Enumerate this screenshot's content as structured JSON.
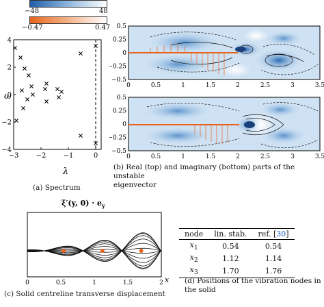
{
  "colorbars": {
    "blue": {
      "min_label": "−48",
      "max_label": "48",
      "low_color": "#1f5fa8",
      "high_color": "#ffffff"
    },
    "orange": {
      "min_label": "−0.47",
      "max_label": "0.47",
      "low_color": "#e8641c",
      "high_color": "#ffffff"
    }
  },
  "spectrum": {
    "caption": "(a) Spectrum",
    "xlabel": "λ",
    "ylabel": "ω",
    "xticks": [
      "−3",
      "−2",
      "−1",
      "0"
    ],
    "yticks": [
      "−4",
      "−2",
      "0",
      "2",
      "4"
    ]
  },
  "eigenvector": {
    "caption_line1": "(b) Real (top) and imaginary (bottom) parts of the unstable",
    "caption_line2": "eigenvector",
    "xticks": [
      "0",
      "0.5",
      "1",
      "1.5",
      "2",
      "2.5",
      "3",
      "3.5"
    ],
    "yticks": [
      "0.5",
      "0.25",
      "0",
      "−0.25",
      "−0.5"
    ]
  },
  "displacement": {
    "title": "ξ′(y, 0) · e_y",
    "caption_line1": "(c) Solid centreline transverse displacement",
    "caption_line2": "",
    "xlabel": "x",
    "xticks": [
      "0",
      "0.5",
      "1",
      "1.5",
      "2"
    ],
    "marker_color": "#e8641c"
  },
  "nodes_table": {
    "headers": [
      "node",
      "lin. stab.",
      "ref. [30]"
    ],
    "rows": [
      {
        "node": "x1",
        "lin": "0.54",
        "ref": "0.54"
      },
      {
        "node": "x2",
        "lin": "1.12",
        "ref": "1.14"
      },
      {
        "node": "x3",
        "lin": "1.70",
        "ref": "1.76"
      }
    ],
    "caption_line1": "(d) Positions of the vibration nodes in",
    "caption_line2": "the solid",
    "ref_color": "#1a56c8"
  },
  "chart_data": [
    {
      "type": "scatter",
      "title": "",
      "xlabel": "λ",
      "ylabel": "ω",
      "xlim": [
        -3,
        0.2
      ],
      "ylim": [
        -4,
        4
      ],
      "reference_line_x": 0,
      "points": [
        {
          "x": 0.0,
          "y": 3.55
        },
        {
          "x": 0.0,
          "y": -3.55
        },
        {
          "x": -2.95,
          "y": 3.4
        },
        {
          "x": -2.75,
          "y": 2.7
        },
        {
          "x": -2.6,
          "y": 1.9
        },
        {
          "x": -2.45,
          "y": 1.4
        },
        {
          "x": -2.7,
          "y": 0.3
        },
        {
          "x": -2.35,
          "y": 0.6
        },
        {
          "x": -2.3,
          "y": 0.0
        },
        {
          "x": -1.8,
          "y": 0.8
        },
        {
          "x": -1.85,
          "y": 0.4
        },
        {
          "x": -1.4,
          "y": 0.4
        },
        {
          "x": -1.25,
          "y": 0.2
        },
        {
          "x": -1.35,
          "y": -0.2
        },
        {
          "x": -1.8,
          "y": -0.5
        },
        {
          "x": -2.5,
          "y": -0.35
        },
        {
          "x": -2.65,
          "y": -1.0
        },
        {
          "x": -2.9,
          "y": -1.9
        },
        {
          "x": -0.55,
          "y": 3.0
        },
        {
          "x": -0.55,
          "y": -3.0
        }
      ]
    },
    {
      "type": "line",
      "title": "ξ′(y, 0) · e_y",
      "xlabel": "x",
      "ylabel": "",
      "xlim": [
        0,
        2
      ],
      "nodes_x": [
        0.54,
        1.12,
        1.7
      ]
    }
  ]
}
